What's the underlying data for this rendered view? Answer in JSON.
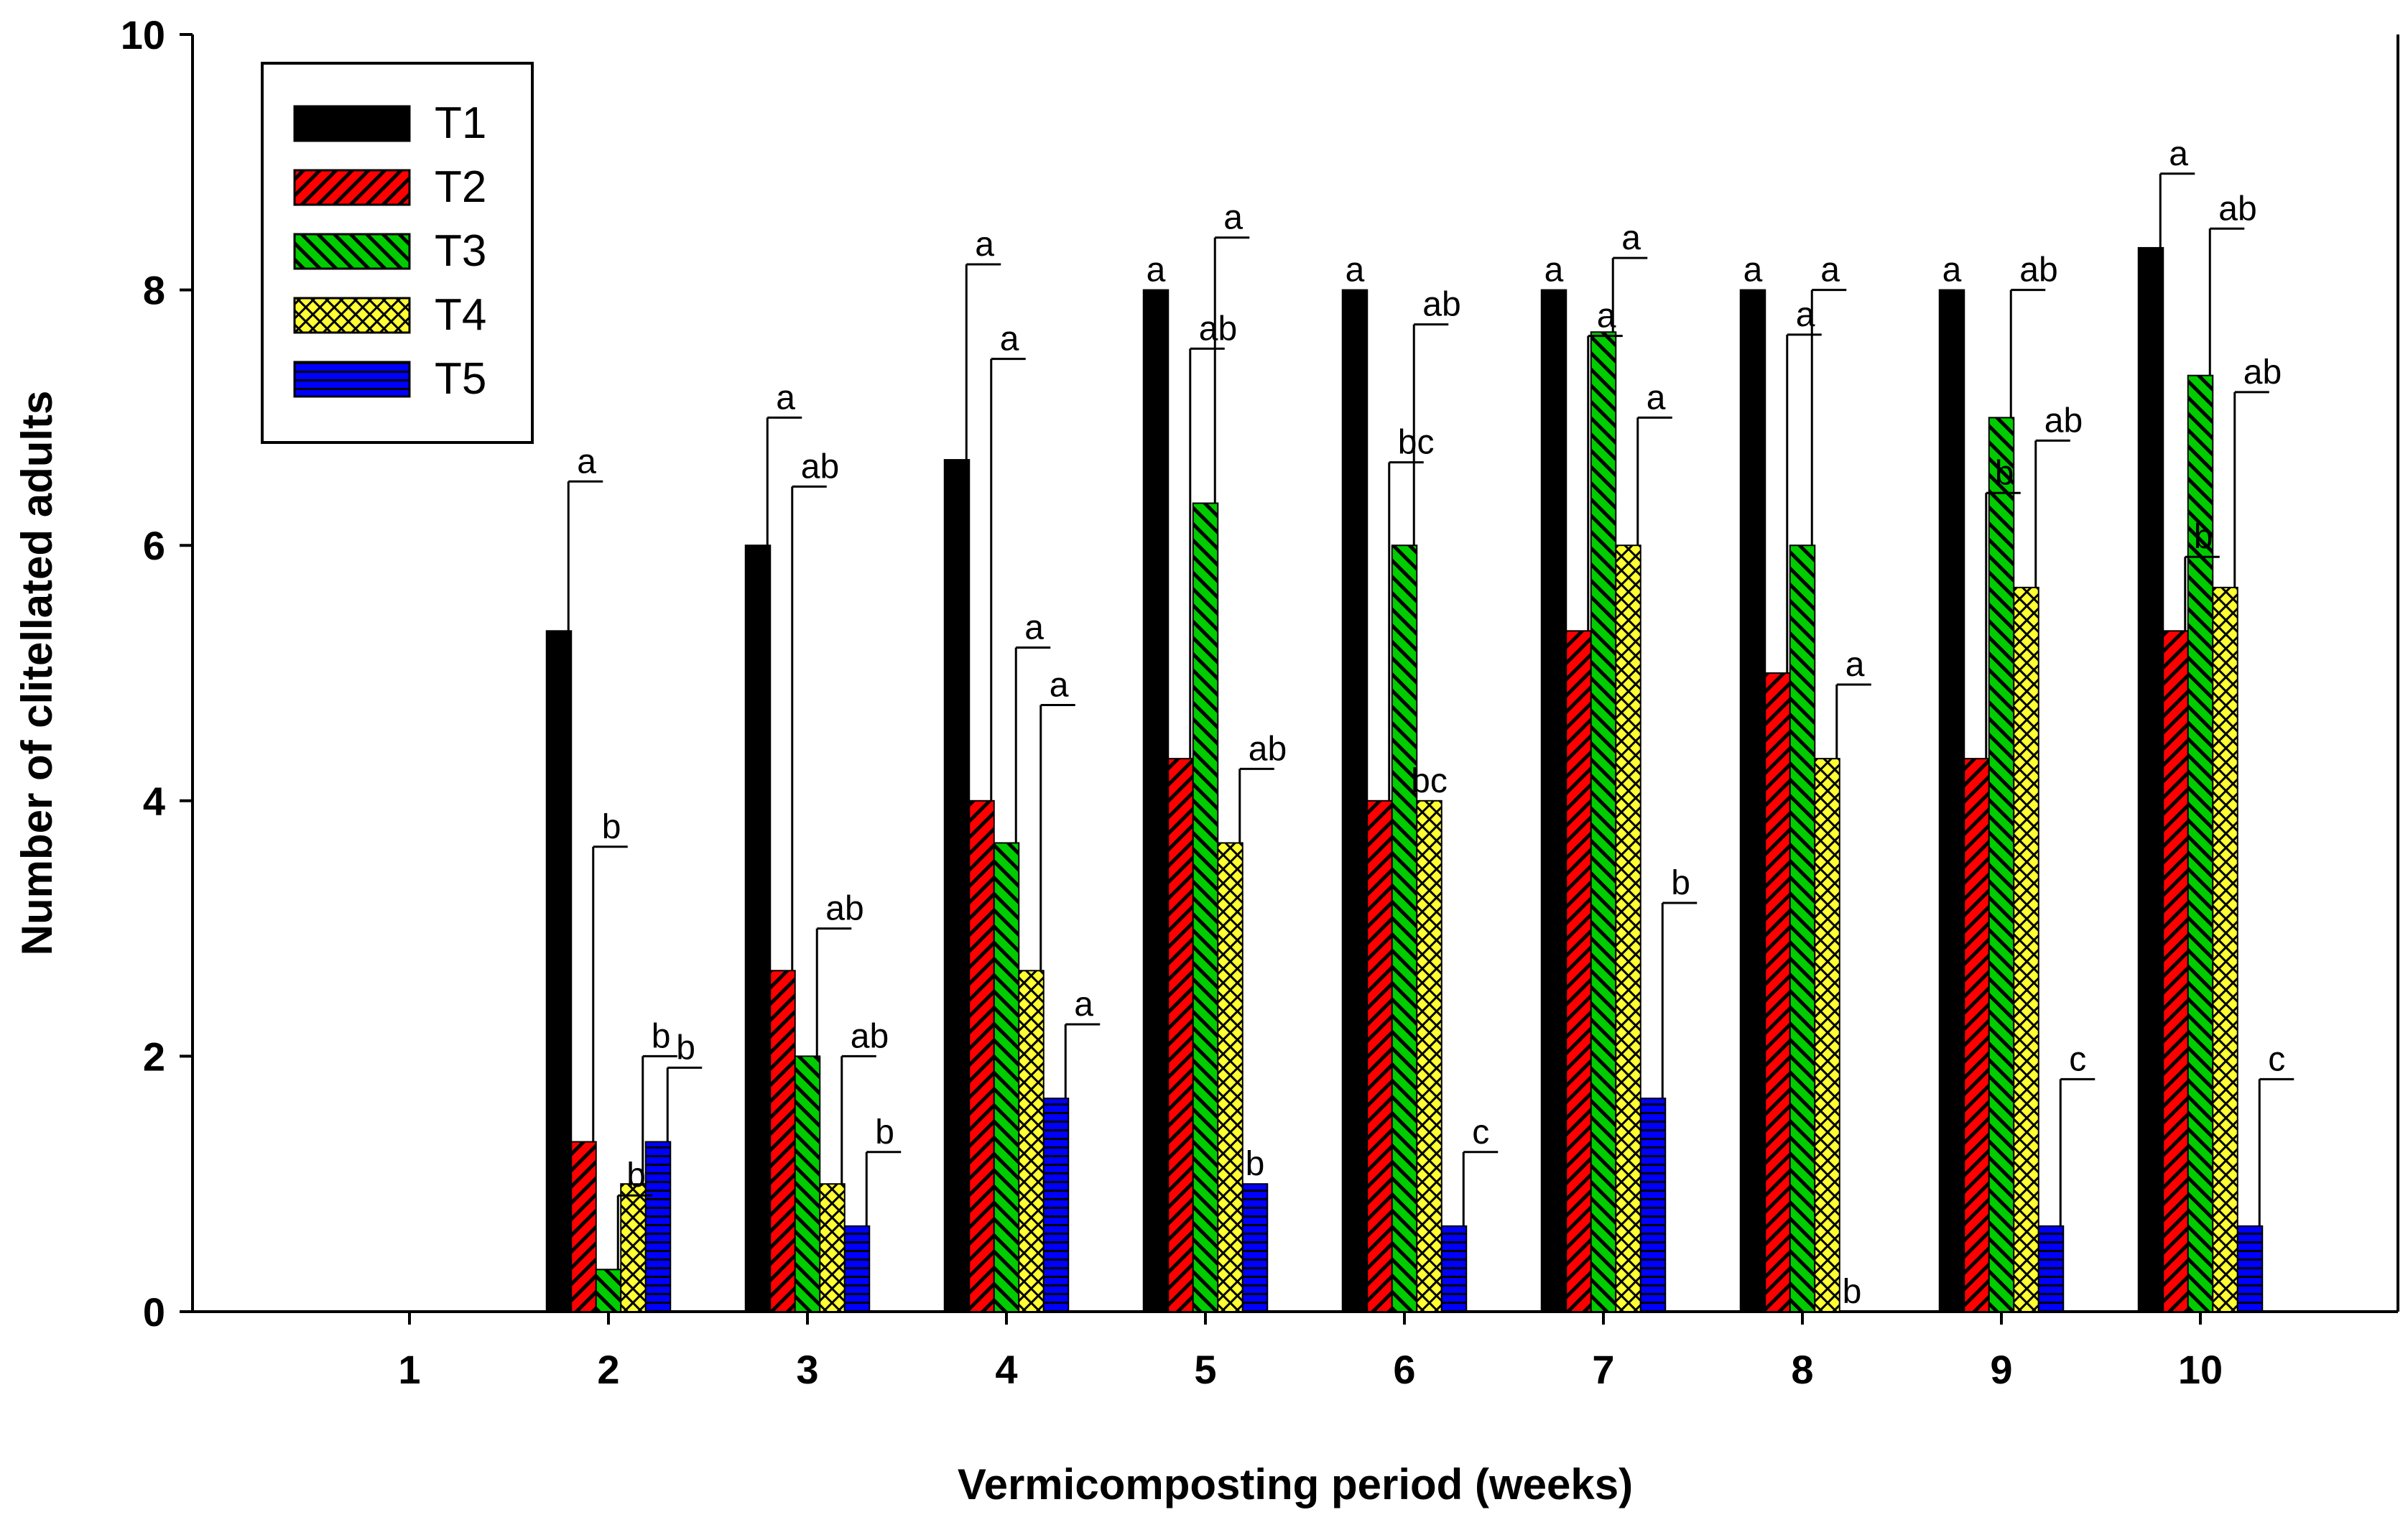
{
  "chart_data": {
    "type": "bar",
    "title": "",
    "xlabel": "Vermicomposting period (weeks)",
    "ylabel": "Number of clitellated adults",
    "ylim": [
      0,
      10
    ],
    "yticks": [
      "0",
      "2",
      "4",
      "6",
      "8",
      "10"
    ],
    "categories": [
      "1",
      "2",
      "3",
      "4",
      "5",
      "6",
      "7",
      "8",
      "9",
      "10"
    ],
    "legend_position": "top-left",
    "series": [
      {
        "name": "T1",
        "color": "#000000",
        "pattern": "solid",
        "values": [
          0,
          5.33,
          6.0,
          6.67,
          8.0,
          8.0,
          8.0,
          8.0,
          8.0,
          8.33
        ],
        "errors": [
          0,
          1.17,
          1.0,
          1.53,
          0,
          0,
          0,
          0,
          0,
          0.58
        ],
        "labels": [
          "",
          "a",
          "a",
          "a",
          "a",
          "a",
          "a",
          "a",
          "a",
          "a"
        ]
      },
      {
        "name": "T2",
        "color": "#ff0000",
        "pattern": "diag-right",
        "values": [
          0,
          1.33,
          2.67,
          4.0,
          4.33,
          4.0,
          5.33,
          5.0,
          4.33,
          5.33
        ],
        "errors": [
          0,
          2.31,
          3.79,
          3.46,
          3.21,
          2.65,
          2.31,
          2.65,
          2.08,
          0.58
        ],
        "labels": [
          "",
          "b",
          "ab",
          "a",
          "ab",
          "bc",
          "a",
          "a",
          "b",
          "b"
        ]
      },
      {
        "name": "T3",
        "color": "#00cc00",
        "pattern": "diag-left",
        "values": [
          0,
          0.33,
          2.0,
          3.67,
          6.33,
          6.0,
          7.67,
          6.0,
          7.0,
          7.33
        ],
        "errors": [
          0,
          0.58,
          1.0,
          1.53,
          2.08,
          1.73,
          0.58,
          2.0,
          1.0,
          1.15
        ],
        "labels": [
          "",
          "b",
          "ab",
          "a",
          "a",
          "ab",
          "a",
          "a",
          "ab",
          "ab"
        ]
      },
      {
        "name": "T4",
        "color": "#ffff33",
        "pattern": "crosshatch",
        "values": [
          0,
          1.0,
          1.0,
          2.67,
          3.67,
          4.0,
          6.0,
          4.33,
          5.67,
          5.67
        ],
        "errors": [
          0,
          1.0,
          1.0,
          2.08,
          0.58,
          0,
          1.0,
          0.58,
          1.15,
          1.53
        ],
        "labels": [
          "",
          "b",
          "ab",
          "a",
          "ab",
          "bc",
          "a",
          "a",
          "ab",
          "ab"
        ]
      },
      {
        "name": "T5",
        "color": "#0000ff",
        "pattern": "horizontal",
        "values": [
          0,
          1.33,
          0.67,
          1.67,
          1.0,
          0.67,
          1.67,
          0,
          0.67,
          0.67
        ],
        "errors": [
          0,
          0.58,
          0.58,
          0.58,
          0,
          0.58,
          1.53,
          0,
          1.15,
          1.15
        ],
        "labels": [
          "",
          "b",
          "b",
          "a",
          "b",
          "c",
          "b",
          "b",
          "c",
          "c"
        ]
      }
    ]
  }
}
